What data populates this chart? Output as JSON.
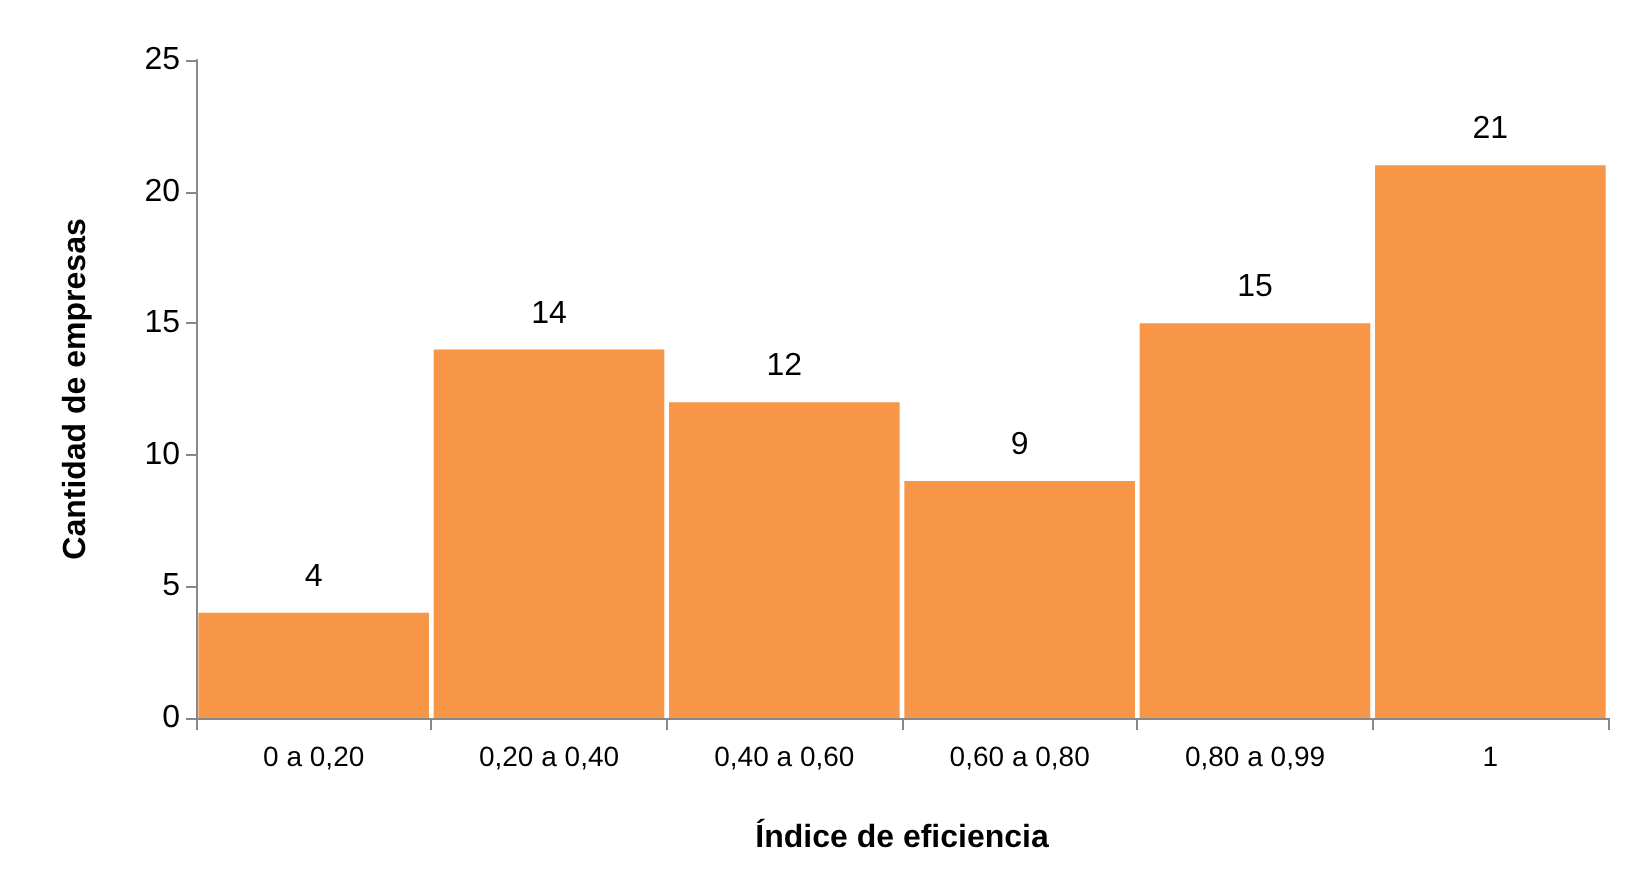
{
  "chart_data": {
    "type": "bar",
    "xlabel": "Índice de eficiencia",
    "ylabel": "Cantidad de empresas",
    "categories": [
      "0 a 0,20",
      "0,20 a 0,40",
      "0,40 a 0,60",
      "0,60 a 0,80",
      "0,80 a 0,99",
      "1"
    ],
    "values": [
      4,
      14,
      12,
      9,
      15,
      21
    ],
    "color": "#f79646",
    "ylim": [
      0,
      25
    ],
    "yticks": [
      0,
      5,
      10,
      15,
      20,
      25
    ],
    "grid": false,
    "data_labels": true
  }
}
